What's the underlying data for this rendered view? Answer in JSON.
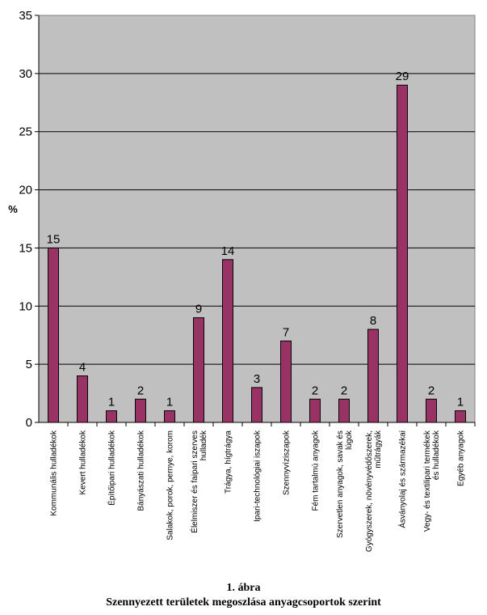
{
  "chart_data": {
    "type": "bar",
    "ylabel": "%",
    "ylim": [
      0,
      35
    ],
    "yticks": [
      0,
      5,
      10,
      15,
      20,
      25,
      30,
      35
    ],
    "grid": true,
    "categories": [
      "Kommunális hulladékok",
      "Kevert hulladékok",
      "Építőipari hulladékok",
      "Bányászati hulladékok",
      "Salakok, porok, pernye, korom",
      "Élelmiszer és faipari szerves hulladék",
      "Trágya, hígtrágya",
      "Ipari-technológiai iszapok",
      "Szennyvíziszapok",
      "Fém tartalmú anyagok",
      "Szervetlen anyagok, savak és lúgok",
      "Gyógyszerek, növényvédőszerek, műtrágyák",
      "Ásványolaj és származékai",
      "Vegy- és textilipari termékek és hulladékok",
      "Egyéb anyagok"
    ],
    "values": [
      15,
      4,
      1,
      2,
      1,
      9,
      14,
      3,
      7,
      2,
      2,
      8,
      29,
      2,
      1
    ],
    "colors": {
      "bar": "#993366",
      "plot_bg": "#c0c0c0",
      "grid": "#000000"
    }
  },
  "caption": {
    "number": "1.   ábra",
    "title": "Szennyezett területek megoszlása anyagcsoportok szerint"
  }
}
